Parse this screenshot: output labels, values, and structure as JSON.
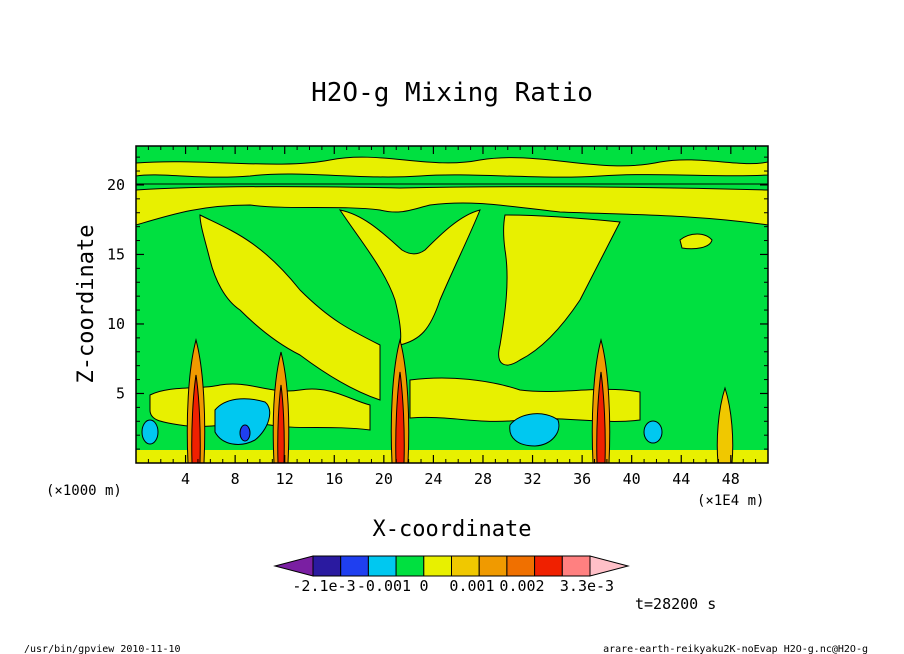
{
  "chart_data": {
    "type": "heatmap",
    "title": "H2O-g Mixing Ratio",
    "xlabel": "X-coordinate",
    "ylabel": "Z-coordinate",
    "x_unit_left": "(×1000 m)",
    "x_unit_right": "(×1E4 m)",
    "x_ticks": [
      4,
      8,
      12,
      16,
      20,
      24,
      28,
      32,
      36,
      40,
      44,
      48
    ],
    "y_ticks": [
      5,
      10,
      15,
      20
    ],
    "xlim": [
      0,
      51
    ],
    "ylim": [
      0,
      22.8
    ],
    "grid": false,
    "time_label": "t=28200 s",
    "colorbar": {
      "labels": [
        "-2.1e-3",
        "-0.001",
        "0",
        "0.001",
        "0.002",
        "3.3e-3"
      ],
      "levels": [
        -0.0021,
        -0.0018,
        -0.0015,
        -0.0012,
        -0.0009,
        -0.0006,
        -0.0003,
        0.0,
        0.0003,
        0.0006,
        0.0009,
        0.0012,
        0.0015,
        0.0018,
        0.0021,
        0.0024
      ],
      "colors": [
        "#7a1fa2",
        "#2a1aa0",
        "#1f3ff0",
        "#00c8f0",
        "#00e040",
        "#e8f000",
        "#f0c800",
        "#f09a00",
        "#f07000",
        "#f02000",
        "#ff8080",
        "#ffc0c8"
      ]
    },
    "regions": [
      {
        "z_range": [
          0,
          22.8
        ],
        "level": "0 to 0.0003",
        "color": "#00e040"
      },
      {
        "z_range": [
          18.5,
          20.5
        ],
        "level": "0.0003 to 0.0006",
        "color": "#e8f000"
      },
      {
        "x_center": 5,
        "z_top": 9,
        "level": "up to 3.3e-3",
        "color": "#f02000"
      },
      {
        "x_center": 11.5,
        "z_top": 8,
        "level": "up to 3.3e-3",
        "color": "#f02000"
      },
      {
        "x_center": 21.5,
        "z_top": 9,
        "level": "up to 3.3e-3",
        "color": "#f02000"
      },
      {
        "x_center": 37.5,
        "z_top": 9,
        "level": "up to 3.3e-3",
        "color": "#f02000"
      },
      {
        "x_center": 47.5,
        "z_top": 5.5,
        "level": "0.0006 to 0.0009",
        "color": "#f0c800"
      },
      {
        "x_center": 9,
        "z_top": 4,
        "level": "-0.001",
        "color": "#00c8f0"
      },
      {
        "x_center": 32,
        "z_top": 3.5,
        "level": "-0.001",
        "color": "#00c8f0"
      }
    ]
  },
  "footer": {
    "left": "/usr/bin/gpview   2010-11-10",
    "right": "arare-earth-reikyaku2K-noEvap_H2O-g.nc@H2O-g"
  }
}
